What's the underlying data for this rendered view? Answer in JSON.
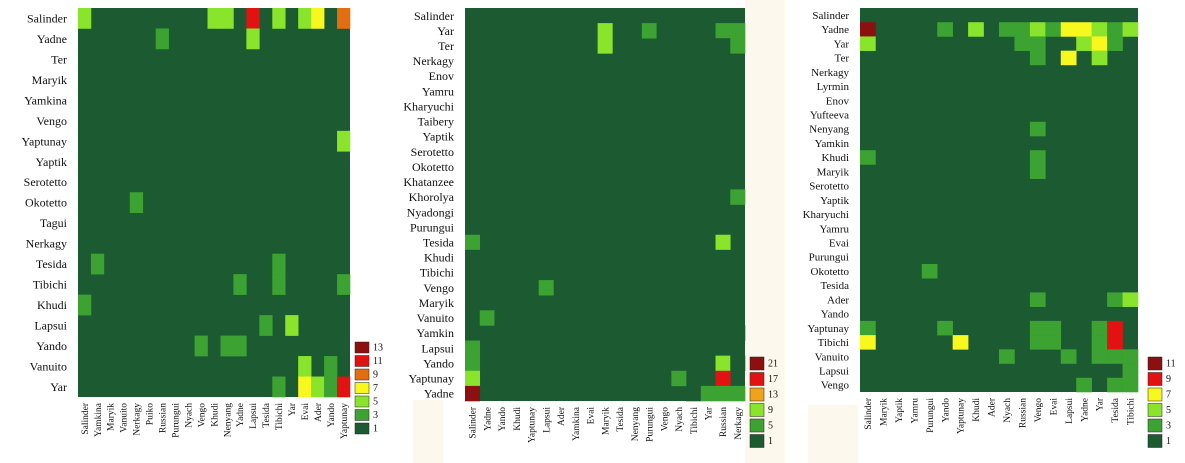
{
  "colors": {
    "background": "#ffffff",
    "paper": "#fcf8ed",
    "base_cell": "#1c5a32"
  },
  "chart_data": [
    {
      "type": "heatmap",
      "title": "",
      "rows": [
        "Salinder",
        "Yadne",
        "Ter",
        "Maryik",
        "Yamkina",
        "Vengo",
        "Yaptunay",
        "Yaptik",
        "Serotetto",
        "Okotetto",
        "Tagui",
        "Nerkagy",
        "Tesida",
        "Tibichi",
        "Khudi",
        "Lapsui",
        "Yando",
        "Vanuito",
        "Yar"
      ],
      "columns": [
        "Salinder",
        "Yamkina",
        "Maryik",
        "Vanuito",
        "Nerkagy",
        "Puiko",
        "Russian",
        "Purungui",
        "Nyach",
        "Vengo",
        "Khudi",
        "Nenyang",
        "Yadne",
        "Lapsui",
        "Tesida",
        "Tibichi",
        "Yar",
        "Evai",
        "Ader",
        "Yando",
        "Yaptunay"
      ],
      "value_range": [
        1,
        13
      ],
      "legend": {
        "position": "bottom-right",
        "labels": [
          "13",
          "11",
          "9",
          "7",
          "5",
          "3",
          "1"
        ],
        "colors": [
          "#8c1010",
          "#e21212",
          "#e36e12",
          "#f8f81e",
          "#8ae42c",
          "#3ca232",
          "#1c5a32"
        ]
      },
      "cells": [
        {
          "row": 0,
          "col": 0,
          "value": 6
        },
        {
          "row": 0,
          "col": 10,
          "value": 5
        },
        {
          "row": 0,
          "col": 11,
          "value": 5
        },
        {
          "row": 0,
          "col": 13,
          "value": 11
        },
        {
          "row": 0,
          "col": 15,
          "value": 5
        },
        {
          "row": 0,
          "col": 17,
          "value": 5
        },
        {
          "row": 0,
          "col": 18,
          "value": 7
        },
        {
          "row": 0,
          "col": 20,
          "value": 10
        },
        {
          "row": 1,
          "col": 6,
          "value": 3
        },
        {
          "row": 1,
          "col": 13,
          "value": 6
        },
        {
          "row": 6,
          "col": 20,
          "value": 5
        },
        {
          "row": 9,
          "col": 4,
          "value": 3
        },
        {
          "row": 12,
          "col": 1,
          "value": 3
        },
        {
          "row": 12,
          "col": 15,
          "value": 3
        },
        {
          "row": 13,
          "col": 12,
          "value": 3
        },
        {
          "row": 13,
          "col": 15,
          "value": 3
        },
        {
          "row": 13,
          "col": 20,
          "value": 3
        },
        {
          "row": 14,
          "col": 0,
          "value": 4
        },
        {
          "row": 15,
          "col": 14,
          "value": 3
        },
        {
          "row": 15,
          "col": 16,
          "value": 6
        },
        {
          "row": 16,
          "col": 9,
          "value": 3
        },
        {
          "row": 16,
          "col": 11,
          "value": 3
        },
        {
          "row": 16,
          "col": 12,
          "value": 3
        },
        {
          "row": 17,
          "col": 17,
          "value": 5
        },
        {
          "row": 17,
          "col": 19,
          "value": 3
        },
        {
          "row": 18,
          "col": 15,
          "value": 3
        },
        {
          "row": 18,
          "col": 17,
          "value": 7
        },
        {
          "row": 18,
          "col": 18,
          "value": 5
        },
        {
          "row": 18,
          "col": 19,
          "value": 3
        },
        {
          "row": 18,
          "col": 20,
          "value": 11
        }
      ]
    },
    {
      "type": "heatmap",
      "title": "",
      "rows": [
        "Salinder",
        "Yar",
        "Ter",
        "Nerkagy",
        "Enov",
        "Yamru",
        "Kharyuchi",
        "Taibery",
        "Yaptik",
        "Serotetto",
        "Okotetto",
        "Khatanzee",
        "Khorolya",
        "Nyadongi",
        "Purungui",
        "Tesida",
        "Khudi",
        "Tibichi",
        "Vengo",
        "Maryik",
        "Vanuito",
        "Yamkin",
        "Lapsui",
        "Yando",
        "Yaptunay",
        "Yadne"
      ],
      "columns": [
        "Salinder",
        "Yadne",
        "Yando",
        "Khudi",
        "Yaptunay",
        "Lapsui",
        "Ader",
        "Yamkina",
        "Evai",
        "Maryik",
        "Tesida",
        "Nenyang",
        "Purungui",
        "Vengo",
        "Nyach",
        "Tibichi",
        "Yar",
        "Russian",
        "Nerkagy"
      ],
      "value_range": [
        1,
        21
      ],
      "legend": {
        "position": "bottom-right",
        "labels": [
          "21",
          "17",
          "13",
          "9",
          "5",
          "1"
        ],
        "colors": [
          "#8c1010",
          "#e21212",
          "#f0a21a",
          "#8ae42c",
          "#3ca232",
          "#1c5a32"
        ]
      },
      "cells": [
        {
          "row": 1,
          "col": 0,
          "value": 4
        },
        {
          "row": 1,
          "col": 9,
          "value": 9
        },
        {
          "row": 1,
          "col": 12,
          "value": 6
        },
        {
          "row": 1,
          "col": 13,
          "value": 3
        },
        {
          "row": 1,
          "col": 17,
          "value": 5
        },
        {
          "row": 1,
          "col": 18,
          "value": 6
        },
        {
          "row": 2,
          "col": 9,
          "value": 9
        },
        {
          "row": 2,
          "col": 17,
          "value": 3
        },
        {
          "row": 2,
          "col": 18,
          "value": 5
        },
        {
          "row": 7,
          "col": 0,
          "value": 3
        },
        {
          "row": 12,
          "col": 18,
          "value": 5
        },
        {
          "row": 14,
          "col": 13,
          "value": 3
        },
        {
          "row": 15,
          "col": 0,
          "value": 6
        },
        {
          "row": 15,
          "col": 17,
          "value": 9
        },
        {
          "row": 16,
          "col": 0,
          "value": 4
        },
        {
          "row": 16,
          "col": 17,
          "value": 4
        },
        {
          "row": 17,
          "col": 0,
          "value": 4
        },
        {
          "row": 17,
          "col": 17,
          "value": 3
        },
        {
          "row": 18,
          "col": 0,
          "value": 3
        },
        {
          "row": 18,
          "col": 5,
          "value": 5
        },
        {
          "row": 19,
          "col": 0,
          "value": 3
        },
        {
          "row": 19,
          "col": 1,
          "value": 3
        },
        {
          "row": 20,
          "col": 1,
          "value": 6
        },
        {
          "row": 20,
          "col": 2,
          "value": 4
        },
        {
          "row": 20,
          "col": 5,
          "value": 3
        },
        {
          "row": 21,
          "col": 18,
          "value": 3
        },
        {
          "row": 22,
          "col": 0,
          "value": 5
        },
        {
          "row": 22,
          "col": 12,
          "value": 3
        },
        {
          "row": 23,
          "col": 0,
          "value": 7
        },
        {
          "row": 23,
          "col": 14,
          "value": 3
        },
        {
          "row": 23,
          "col": 15,
          "value": 3
        },
        {
          "row": 23,
          "col": 17,
          "value": 11
        },
        {
          "row": 23,
          "col": 18,
          "value": 3
        },
        {
          "row": 24,
          "col": 0,
          "value": 11
        },
        {
          "row": 24,
          "col": 4,
          "value": 3
        },
        {
          "row": 24,
          "col": 14,
          "value": 8
        },
        {
          "row": 24,
          "col": 17,
          "value": 20
        },
        {
          "row": 25,
          "col": 0,
          "value": 21
        },
        {
          "row": 25,
          "col": 15,
          "value": 3
        },
        {
          "row": 25,
          "col": 16,
          "value": 5
        },
        {
          "row": 25,
          "col": 17,
          "value": 7
        },
        {
          "row": 25,
          "col": 18,
          "value": 5
        }
      ]
    },
    {
      "type": "heatmap",
      "title": "",
      "rows": [
        "Salinder",
        "Yadne",
        "Yar",
        "Ter",
        "Nerkagy",
        "Lyrmin",
        "Enov",
        "Yufteeva",
        "Nenyang",
        "Yamkin",
        "Khudi",
        "Maryik",
        "Serotetto",
        "Yaptik",
        "Kharyuchi",
        "Yamru",
        "Evai",
        "Purungui",
        "Okotetto",
        "Tesida",
        "Ader",
        "Yando",
        "Yaptunay",
        "Tibichi",
        "Vanuito",
        "Lapsui",
        "Vengo"
      ],
      "columns": [
        "Salinder",
        "Maryik",
        "Yaptik",
        "Yamru",
        "Purungui",
        "Yando",
        "Yaptunay",
        "Khudi",
        "Ader",
        "Nyach",
        "Russian",
        "Vengo",
        "Evai",
        "Lapsui",
        "Yadne",
        "Yar",
        "Tesida",
        "Tibichi"
      ],
      "value_range": [
        1,
        11
      ],
      "legend": {
        "position": "bottom-right",
        "labels": [
          "11",
          "9",
          "7",
          "5",
          "3",
          "1"
        ],
        "colors": [
          "#8c1010",
          "#e21212",
          "#f8f81e",
          "#8ae42c",
          "#3ca232",
          "#1c5a32"
        ]
      },
      "cells": [
        {
          "row": 1,
          "col": 0,
          "value": 11
        },
        {
          "row": 1,
          "col": 5,
          "value": 3
        },
        {
          "row": 1,
          "col": 7,
          "value": 5
        },
        {
          "row": 1,
          "col": 9,
          "value": 3
        },
        {
          "row": 1,
          "col": 10,
          "value": 4
        },
        {
          "row": 1,
          "col": 11,
          "value": 5
        },
        {
          "row": 1,
          "col": 12,
          "value": 4
        },
        {
          "row": 1,
          "col": 13,
          "value": 8
        },
        {
          "row": 1,
          "col": 14,
          "value": 7
        },
        {
          "row": 1,
          "col": 15,
          "value": 6
        },
        {
          "row": 1,
          "col": 16,
          "value": 4
        },
        {
          "row": 1,
          "col": 17,
          "value": 5
        },
        {
          "row": 2,
          "col": 0,
          "value": 6
        },
        {
          "row": 2,
          "col": 10,
          "value": 3
        },
        {
          "row": 2,
          "col": 11,
          "value": 4
        },
        {
          "row": 2,
          "col": 14,
          "value": 6
        },
        {
          "row": 2,
          "col": 15,
          "value": 8
        },
        {
          "row": 2,
          "col": 16,
          "value": 4
        },
        {
          "row": 3,
          "col": 11,
          "value": 3
        },
        {
          "row": 3,
          "col": 13,
          "value": 7
        },
        {
          "row": 3,
          "col": 15,
          "value": 5
        },
        {
          "row": 8,
          "col": 11,
          "value": 3
        },
        {
          "row": 10,
          "col": 0,
          "value": 4
        },
        {
          "row": 10,
          "col": 11,
          "value": 3
        },
        {
          "row": 11,
          "col": 11,
          "value": 3
        },
        {
          "row": 18,
          "col": 4,
          "value": 3
        },
        {
          "row": 20,
          "col": 11,
          "value": 3
        },
        {
          "row": 20,
          "col": 16,
          "value": 3
        },
        {
          "row": 20,
          "col": 17,
          "value": 5
        },
        {
          "row": 22,
          "col": 0,
          "value": 3
        },
        {
          "row": 22,
          "col": 5,
          "value": 4
        },
        {
          "row": 22,
          "col": 11,
          "value": 3
        },
        {
          "row": 22,
          "col": 12,
          "value": 4
        },
        {
          "row": 22,
          "col": 15,
          "value": 3
        },
        {
          "row": 22,
          "col": 16,
          "value": 10
        },
        {
          "row": 23,
          "col": 0,
          "value": 8
        },
        {
          "row": 23,
          "col": 6,
          "value": 7
        },
        {
          "row": 23,
          "col": 11,
          "value": 4
        },
        {
          "row": 23,
          "col": 12,
          "value": 4
        },
        {
          "row": 23,
          "col": 15,
          "value": 3
        },
        {
          "row": 23,
          "col": 16,
          "value": 10
        },
        {
          "row": 24,
          "col": 9,
          "value": 3
        },
        {
          "row": 24,
          "col": 13,
          "value": 4
        },
        {
          "row": 24,
          "col": 15,
          "value": 3
        },
        {
          "row": 24,
          "col": 16,
          "value": 4
        },
        {
          "row": 24,
          "col": 17,
          "value": 3
        },
        {
          "row": 25,
          "col": 17,
          "value": 3
        },
        {
          "row": 26,
          "col": 14,
          "value": 4
        },
        {
          "row": 26,
          "col": 16,
          "value": 4
        },
        {
          "row": 26,
          "col": 17,
          "value": 3
        }
      ]
    }
  ]
}
